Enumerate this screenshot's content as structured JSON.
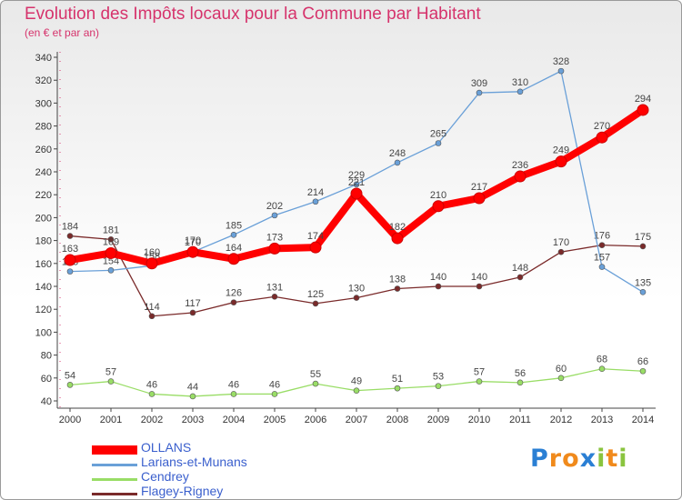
{
  "title": "Evolution des Impôts locaux pour la Commune par Habitant",
  "subtitle": "(en € et par an)",
  "logo_text": "Proxiti",
  "chart_data": {
    "type": "line",
    "title": "Evolution des Impôts locaux pour la Commune par Habitant",
    "subtitle": "(en € et par an)",
    "xlabel": "",
    "ylabel": "",
    "x": [
      "2000",
      "2001",
      "2002",
      "2003",
      "2004",
      "2005",
      "2006",
      "2007",
      "2008",
      "2009",
      "2010",
      "2011",
      "2012",
      "2013",
      "2014"
    ],
    "ylim": [
      40,
      340
    ],
    "yticks": [
      40,
      60,
      80,
      100,
      120,
      140,
      160,
      180,
      200,
      220,
      240,
      260,
      280,
      300,
      320,
      340
    ],
    "grid": false,
    "legend_position": "bottom-left",
    "series": [
      {
        "name": "OLLANS",
        "color": "#ff0000",
        "values": [
          163,
          169,
          160,
          170,
          164,
          173,
          174,
          221,
          182,
          210,
          217,
          236,
          249,
          270,
          294
        ]
      },
      {
        "name": "Larians-et-Munans",
        "color": "#6aa0d8",
        "values": [
          153,
          154,
          158,
          170,
          185,
          202,
          214,
          229,
          248,
          265,
          309,
          310,
          328,
          157,
          135
        ]
      },
      {
        "name": "Cendrey",
        "color": "#99dd66",
        "values": [
          54,
          57,
          46,
          44,
          46,
          46,
          55,
          49,
          51,
          53,
          57,
          56,
          60,
          68,
          66
        ]
      },
      {
        "name": "Flagey-Rigney",
        "color": "#7a2a2a",
        "values": [
          184,
          181,
          114,
          117,
          126,
          131,
          125,
          130,
          138,
          140,
          140,
          148,
          170,
          176,
          175
        ]
      }
    ]
  }
}
